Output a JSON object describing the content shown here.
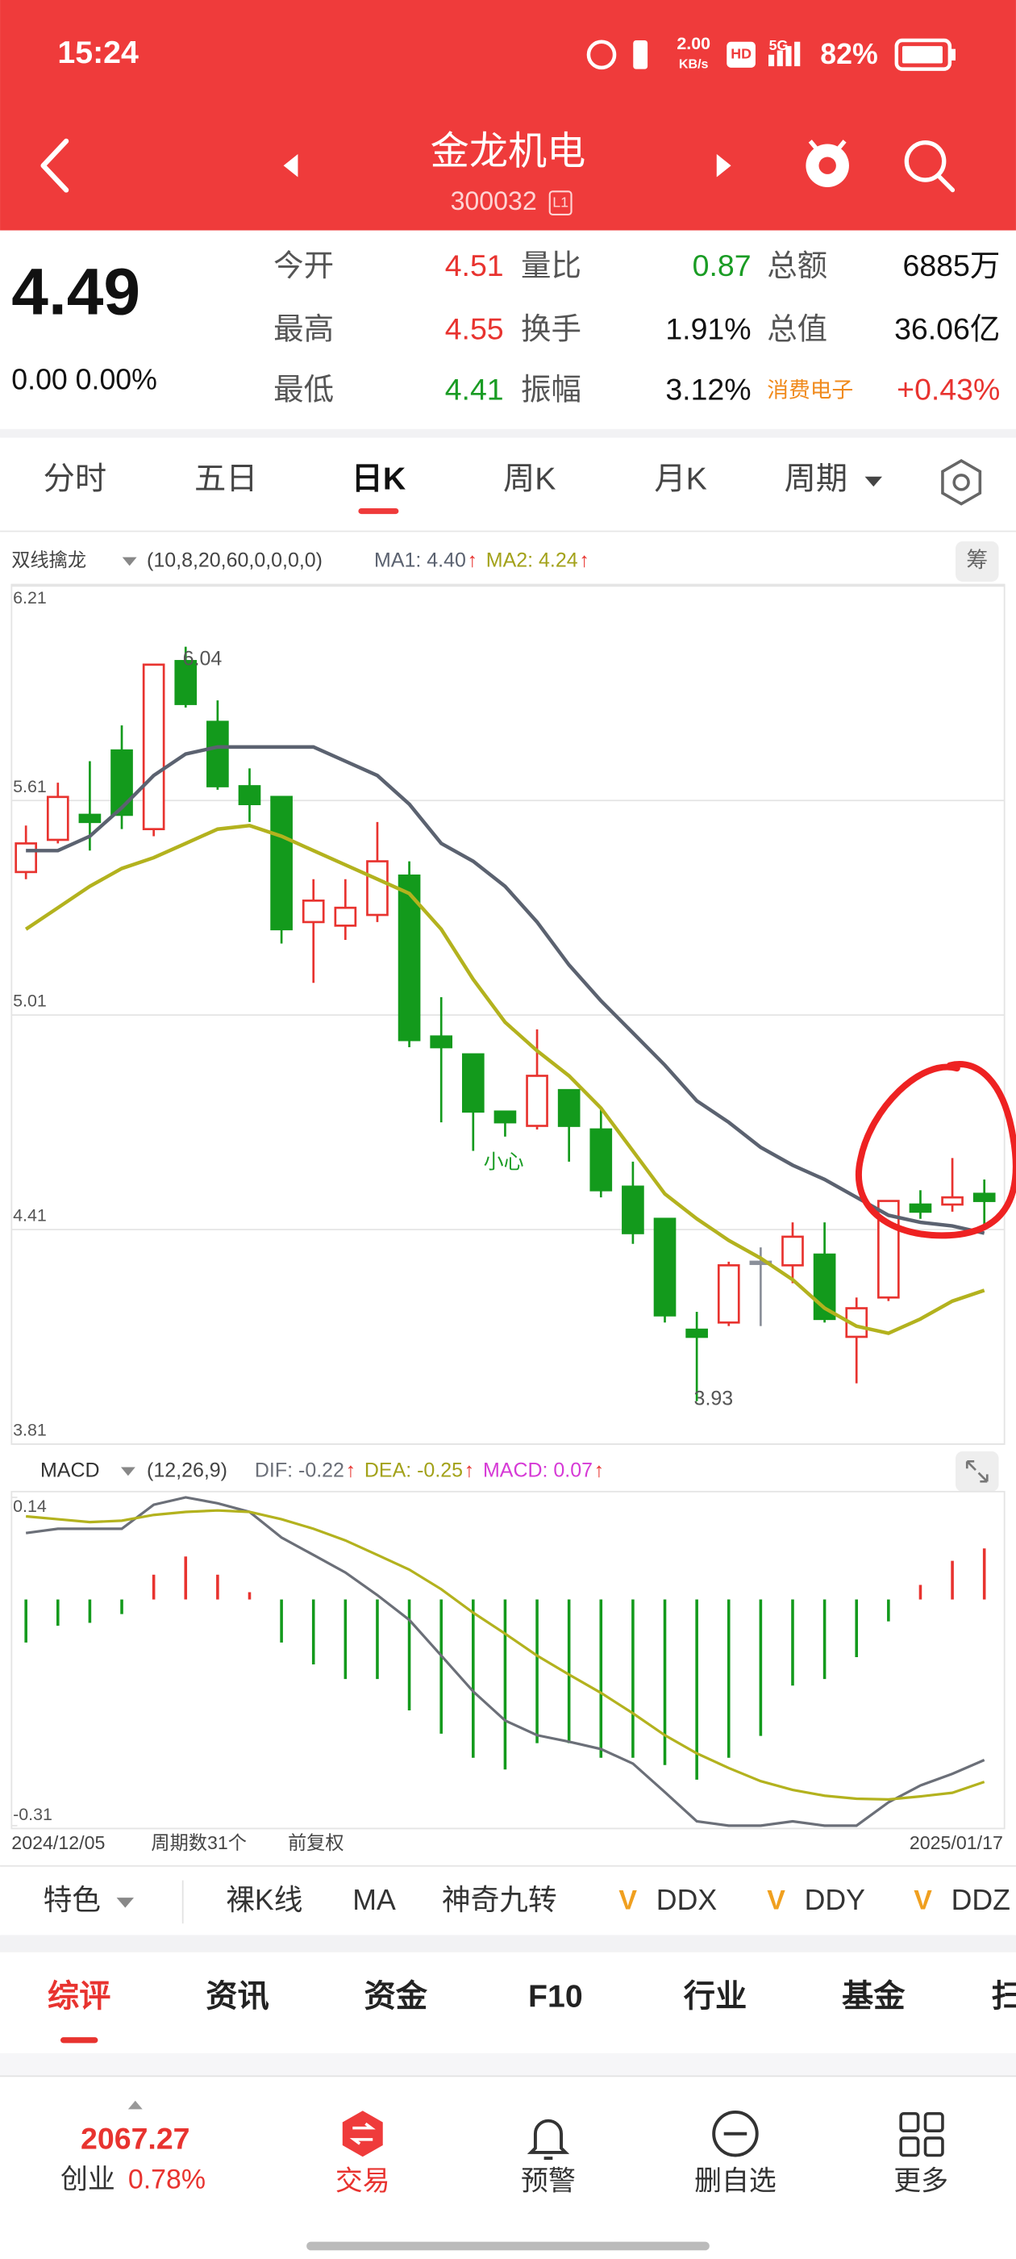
{
  "status_bar": {
    "time": "15:24",
    "speed": "2.00",
    "speed_unit": "KB/s",
    "hd": "HD",
    "network": "5G",
    "battery": "82%"
  },
  "header": {
    "title": "金龙机电",
    "code": "300032",
    "badge": "L1"
  },
  "quote": {
    "price": "4.49",
    "change": "0.00 0.00%",
    "rows": [
      [
        {
          "label": "今开",
          "value": "4.51",
          "color": "#e8332f"
        },
        {
          "label": "量比",
          "value": "0.87",
          "color": "#1a9c24"
        },
        {
          "label": "总额",
          "value": "6885万",
          "color": "#111111"
        }
      ],
      [
        {
          "label": "最高",
          "value": "4.55",
          "color": "#e8332f"
        },
        {
          "label": "换手",
          "value": "1.91%",
          "color": "#111111"
        },
        {
          "label": "总值",
          "value": "36.06亿",
          "color": "#111111"
        }
      ],
      [
        {
          "label": "最低",
          "value": "4.41",
          "color": "#1a9c24"
        },
        {
          "label": "振幅",
          "value": "3.12%",
          "color": "#111111"
        },
        {
          "label": "消费电子",
          "value": "+0.43%",
          "color": "#e8332f"
        }
      ]
    ]
  },
  "period_tabs": [
    "分时",
    "五日",
    "日K",
    "周K",
    "月K",
    "周期"
  ],
  "indicator_bar": {
    "name": "双线擒龙",
    "params": "(10,8,20,60,0,0,0,0)",
    "legend": [
      {
        "text": "MA1: 4.40",
        "arrow": "↑"
      },
      {
        "text": "MA2: 4.24",
        "arrow": "↑"
      }
    ],
    "button": "筹"
  },
  "chart_data": [
    {
      "type": "candlestick",
      "ylim": [
        3.81,
        6.21
      ],
      "yticks": [
        6.21,
        5.61,
        5.01,
        4.41,
        3.81
      ],
      "grid": true,
      "up_color": "#e8332f",
      "down_color": "#139a1c",
      "flat_color": "#8a8f99",
      "open": [
        5.41,
        5.5,
        5.57,
        5.75,
        5.53,
        6.0,
        5.83,
        5.65,
        5.62,
        5.27,
        5.26,
        5.29,
        5.4,
        4.95,
        4.9,
        4.74,
        4.7,
        4.8,
        4.69,
        4.53,
        4.44,
        4.13,
        4.15,
        4.32,
        4.31,
        4.34,
        4.11,
        4.22,
        4.48,
        4.48,
        4.51
      ],
      "high": [
        5.54,
        5.66,
        5.72,
        5.82,
        5.99,
        6.04,
        5.89,
        5.7,
        5.62,
        5.39,
        5.39,
        5.55,
        5.44,
        5.06,
        4.9,
        4.74,
        4.97,
        4.8,
        4.75,
        4.6,
        4.44,
        4.18,
        4.32,
        4.36,
        4.43,
        4.43,
        4.22,
        4.49,
        4.52,
        4.61,
        4.55
      ],
      "low": [
        5.39,
        5.49,
        5.47,
        5.53,
        5.51,
        5.87,
        5.64,
        5.55,
        5.21,
        5.1,
        5.22,
        5.27,
        4.92,
        4.71,
        4.63,
        4.67,
        4.69,
        4.6,
        4.5,
        4.37,
        4.15,
        3.93,
        4.14,
        4.14,
        4.26,
        4.15,
        3.98,
        4.21,
        4.44,
        4.46,
        4.41
      ],
      "close": [
        5.49,
        5.62,
        5.55,
        5.57,
        5.99,
        5.88,
        5.65,
        5.6,
        5.25,
        5.33,
        5.31,
        5.44,
        4.94,
        4.92,
        4.74,
        4.71,
        4.84,
        4.7,
        4.52,
        4.4,
        4.17,
        4.11,
        4.31,
        4.32,
        4.39,
        4.16,
        4.19,
        4.49,
        4.46,
        4.5,
        4.49
      ],
      "series": [
        {
          "color": "#5b6270",
          "values": [
            5.47,
            5.47,
            5.51,
            5.59,
            5.68,
            5.74,
            5.76,
            5.76,
            5.76,
            5.76,
            5.72,
            5.68,
            5.6,
            5.49,
            5.44,
            5.37,
            5.27,
            5.15,
            5.05,
            4.96,
            4.87,
            4.77,
            4.71,
            4.64,
            4.59,
            4.55,
            4.5,
            4.45,
            4.43,
            4.42,
            4.4
          ]
        },
        {
          "color": "#b3b21e",
          "values": [
            5.25,
            5.31,
            5.37,
            5.42,
            5.45,
            5.49,
            5.53,
            5.54,
            5.51,
            5.47,
            5.43,
            5.39,
            5.35,
            5.25,
            5.11,
            4.99,
            4.91,
            4.84,
            4.75,
            4.63,
            4.51,
            4.44,
            4.38,
            4.33,
            4.27,
            4.19,
            4.14,
            4.12,
            4.16,
            4.21,
            4.24
          ]
        }
      ],
      "annotations": [
        "小心"
      ]
    },
    {
      "type": "macd",
      "ylim": [
        -0.31,
        0.14
      ],
      "yticks": [
        0.14,
        -0.31
      ],
      "up_color": "#e8332f",
      "down_color": "#139a1c",
      "values": [
        -0.059,
        -0.036,
        -0.032,
        -0.02,
        0.034,
        0.059,
        0.034,
        0.01,
        -0.059,
        -0.089,
        -0.109,
        -0.109,
        -0.152,
        -0.184,
        -0.217,
        -0.233,
        -0.197,
        -0.197,
        -0.217,
        -0.217,
        -0.227,
        -0.247,
        -0.217,
        -0.187,
        -0.118,
        -0.109,
        -0.079,
        -0.03,
        0.02,
        0.053,
        0.07
      ],
      "series": [
        {
          "color": "#6b6f78",
          "values": [
            0.091,
            0.097,
            0.097,
            0.097,
            0.13,
            0.14,
            0.132,
            0.12,
            0.085,
            0.061,
            0.037,
            0.006,
            -0.028,
            -0.077,
            -0.126,
            -0.166,
            -0.186,
            -0.195,
            -0.205,
            -0.225,
            -0.264,
            -0.304,
            -0.31,
            -0.31,
            -0.304,
            -0.31,
            -0.31,
            -0.278,
            -0.255,
            -0.239,
            -0.22
          ]
        },
        {
          "color": "#b3b21e",
          "values": [
            0.114,
            0.11,
            0.106,
            0.108,
            0.116,
            0.12,
            0.122,
            0.12,
            0.11,
            0.097,
            0.081,
            0.061,
            0.041,
            0.014,
            -0.018,
            -0.047,
            -0.077,
            -0.103,
            -0.128,
            -0.156,
            -0.186,
            -0.211,
            -0.231,
            -0.249,
            -0.261,
            -0.269,
            -0.273,
            -0.274,
            -0.27,
            -0.265,
            -0.25
          ]
        }
      ],
      "header": {
        "name": "MACD",
        "params": "(12,26,9)",
        "legend": [
          {
            "text": "DIF: -0.22",
            "arrow": "↑",
            "color": "#6b6f78"
          },
          {
            "text": "DEA: -0.25",
            "arrow": "↑",
            "color": "#a3a21a"
          },
          {
            "text": "MACD: 0.07",
            "arrow": "↑",
            "color": "#d63ad6"
          }
        ]
      },
      "footer": {
        "start": "2024/12/05",
        "count": "周期数31个",
        "adjust": "前复权",
        "end": "2025/01/17"
      }
    }
  ],
  "indicator_tabs": {
    "first": "特色",
    "items": [
      "裸K线",
      "MA",
      "神奇九转"
    ],
    "v_items": [
      {
        "v": "V",
        "name": "DDX"
      },
      {
        "v": "V",
        "name": "DDY"
      },
      {
        "v": "V",
        "name": "DDZ"
      }
    ]
  },
  "section_tabs": [
    "综评",
    "资讯",
    "资金",
    "F10",
    "行业",
    "基金",
    "扫"
  ],
  "bottom_nav": {
    "index_value": "2067.27",
    "index_name": "创业",
    "index_change": "0.78%",
    "items": [
      "交易",
      "预警",
      "删自选",
      "更多"
    ]
  }
}
